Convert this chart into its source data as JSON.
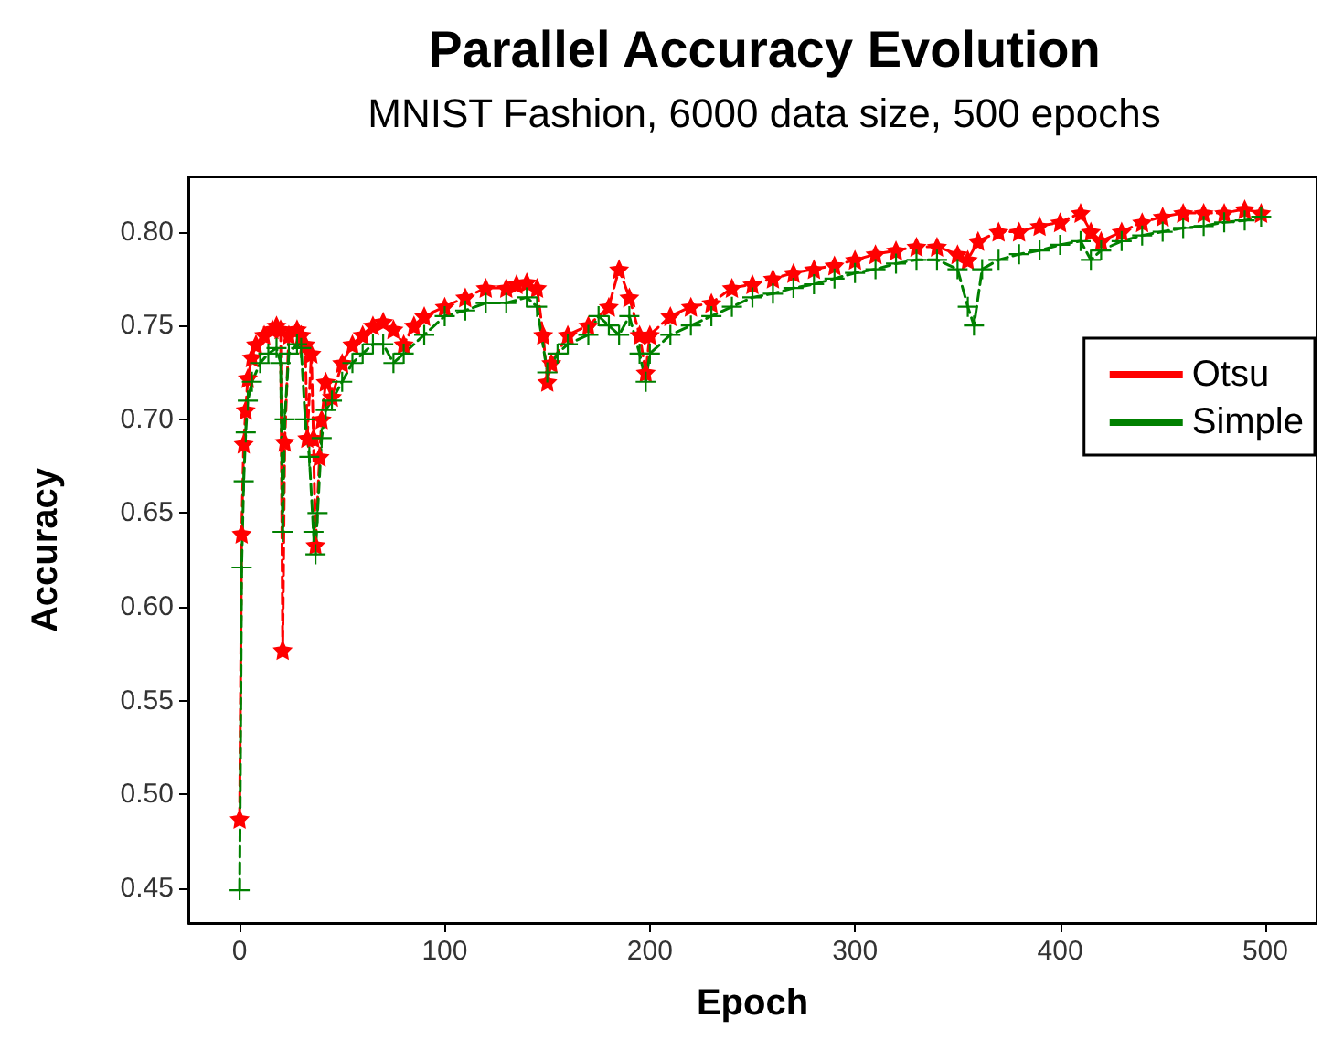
{
  "chart_data": {
    "type": "line",
    "title": "Parallel Accuracy Evolution",
    "subtitle": "MNIST Fashion, 6000 data size, 500 epochs",
    "xlabel": "Epoch",
    "ylabel": "Accuracy",
    "xlim": [
      -25,
      525
    ],
    "xticks": [
      0,
      100,
      200,
      300,
      400,
      500
    ],
    "ylim": [
      0.4315,
      0.829
    ],
    "yticks": [
      0.45,
      {
        "value": 0.5,
        "label": "0.50"
      },
      0.55,
      {
        "value": 0.6,
        "label": "0.60"
      },
      0.65,
      {
        "value": 0.7,
        "label": "0.70"
      },
      0.75,
      {
        "value": 0.8,
        "label": "0.80"
      }
    ],
    "grid": false,
    "legend": "right",
    "series": [
      {
        "name": "Otsu",
        "color": "#ff0000",
        "marker": "star",
        "line_style": "dashed",
        "x": [
          0,
          1,
          2,
          3,
          4,
          6,
          8,
          12,
          16,
          18,
          20,
          21,
          22,
          24,
          28,
          30,
          32,
          33,
          35,
          36,
          37,
          39,
          40,
          42,
          45,
          50,
          55,
          60,
          65,
          70,
          75,
          80,
          85,
          90,
          100,
          110,
          120,
          130,
          135,
          140,
          145,
          148,
          150,
          152,
          160,
          170,
          180,
          185,
          190,
          195,
          198,
          200,
          210,
          220,
          230,
          240,
          250,
          260,
          270,
          280,
          290,
          300,
          310,
          320,
          330,
          340,
          350,
          355,
          360,
          370,
          380,
          390,
          400,
          410,
          415,
          420,
          430,
          440,
          450,
          460,
          470,
          480,
          490,
          498
        ],
        "values": [
          0.487,
          0.639,
          0.687,
          0.705,
          0.722,
          0.733,
          0.74,
          0.745,
          0.748,
          0.75,
          0.748,
          0.577,
          0.688,
          0.745,
          0.748,
          0.745,
          0.74,
          0.69,
          0.735,
          0.69,
          0.633,
          0.68,
          0.7,
          0.72,
          0.712,
          0.73,
          0.74,
          0.745,
          0.75,
          0.752,
          0.748,
          0.74,
          0.75,
          0.755,
          0.76,
          0.765,
          0.77,
          0.77,
          0.772,
          0.773,
          0.77,
          0.745,
          0.72,
          0.73,
          0.745,
          0.75,
          0.76,
          0.78,
          0.765,
          0.745,
          0.725,
          0.745,
          0.755,
          0.76,
          0.762,
          0.77,
          0.772,
          0.775,
          0.778,
          0.78,
          0.782,
          0.785,
          0.788,
          0.79,
          0.792,
          0.792,
          0.788,
          0.785,
          0.795,
          0.8,
          0.8,
          0.803,
          0.805,
          0.81,
          0.8,
          0.795,
          0.8,
          0.805,
          0.808,
          0.81,
          0.81,
          0.81,
          0.812,
          0.81
        ]
      },
      {
        "name": "Simple",
        "color": "#008000",
        "marker": "cross",
        "line_style": "dashed",
        "x": [
          0,
          1,
          2,
          3,
          4,
          6,
          10,
          14,
          18,
          20,
          21,
          22,
          24,
          28,
          30,
          32,
          34,
          36,
          37,
          38,
          40,
          42,
          45,
          50,
          55,
          60,
          65,
          70,
          75,
          80,
          90,
          100,
          110,
          120,
          130,
          140,
          145,
          150,
          155,
          160,
          170,
          175,
          180,
          185,
          190,
          195,
          198,
          200,
          210,
          220,
          230,
          240,
          250,
          260,
          270,
          280,
          290,
          300,
          310,
          320,
          330,
          340,
          350,
          355,
          358,
          362,
          370,
          380,
          390,
          400,
          410,
          415,
          420,
          430,
          440,
          450,
          460,
          470,
          480,
          490,
          498
        ],
        "values": [
          0.449,
          0.621,
          0.667,
          0.693,
          0.71,
          0.72,
          0.73,
          0.735,
          0.738,
          0.73,
          0.64,
          0.7,
          0.735,
          0.74,
          0.738,
          0.7,
          0.68,
          0.64,
          0.628,
          0.65,
          0.69,
          0.705,
          0.71,
          0.72,
          0.73,
          0.735,
          0.74,
          0.74,
          0.73,
          0.735,
          0.745,
          0.755,
          0.758,
          0.762,
          0.762,
          0.765,
          0.76,
          0.725,
          0.735,
          0.74,
          0.745,
          0.755,
          0.75,
          0.745,
          0.755,
          0.735,
          0.72,
          0.735,
          0.745,
          0.75,
          0.755,
          0.76,
          0.765,
          0.767,
          0.77,
          0.772,
          0.775,
          0.778,
          0.78,
          0.783,
          0.785,
          0.785,
          0.78,
          0.76,
          0.75,
          0.78,
          0.785,
          0.788,
          0.79,
          0.793,
          0.795,
          0.785,
          0.79,
          0.795,
          0.798,
          0.8,
          0.802,
          0.803,
          0.805,
          0.806,
          0.808
        ]
      }
    ]
  }
}
